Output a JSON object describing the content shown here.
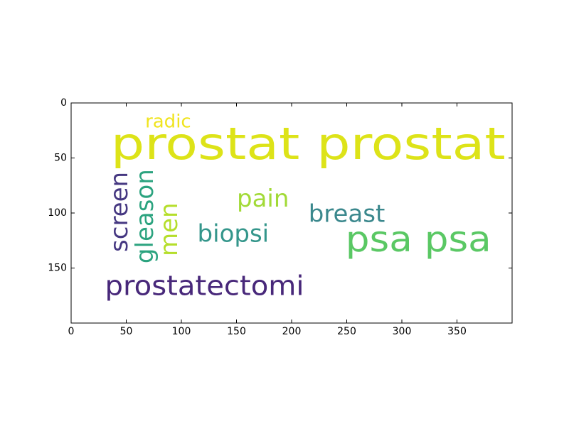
{
  "chart_data": {
    "type": "wordcloud",
    "title": "",
    "xlabel": "",
    "ylabel": "",
    "xlim": [
      0,
      400
    ],
    "ylim": [
      200,
      0
    ],
    "x_ticks": [
      0,
      50,
      100,
      150,
      200,
      250,
      300,
      350
    ],
    "y_ticks": [
      0,
      50,
      100,
      150
    ],
    "grid": false,
    "words": [
      {
        "text": "prostat prostat",
        "x": 215,
        "y": 37,
        "orientation": "horizontal",
        "color": "#dde318"
      },
      {
        "text": "radic",
        "x": 88,
        "y": 17,
        "orientation": "horizontal",
        "color": "#f0e41f"
      },
      {
        "text": "psa psa",
        "x": 315,
        "y": 124,
        "orientation": "horizontal",
        "color": "#5ac864"
      },
      {
        "text": "breast",
        "x": 250,
        "y": 101,
        "orientation": "horizontal",
        "color": "#3b888d"
      },
      {
        "text": "pain",
        "x": 174,
        "y": 87,
        "orientation": "horizontal",
        "color": "#a2da37"
      },
      {
        "text": "biopsi",
        "x": 147,
        "y": 119,
        "orientation": "horizontal",
        "color": "#34968b"
      },
      {
        "text": "prostatectomi",
        "x": 121,
        "y": 166,
        "orientation": "horizontal",
        "color": "#48287a"
      },
      {
        "text": "screen",
        "x": 44,
        "y": 99,
        "orientation": "vertical",
        "color": "#453781"
      },
      {
        "text": "gleason",
        "x": 67,
        "y": 103,
        "orientation": "vertical",
        "color": "#2ba37f"
      },
      {
        "text": "men",
        "x": 89,
        "y": 115,
        "orientation": "vertical",
        "color": "#b5de2b"
      }
    ]
  }
}
